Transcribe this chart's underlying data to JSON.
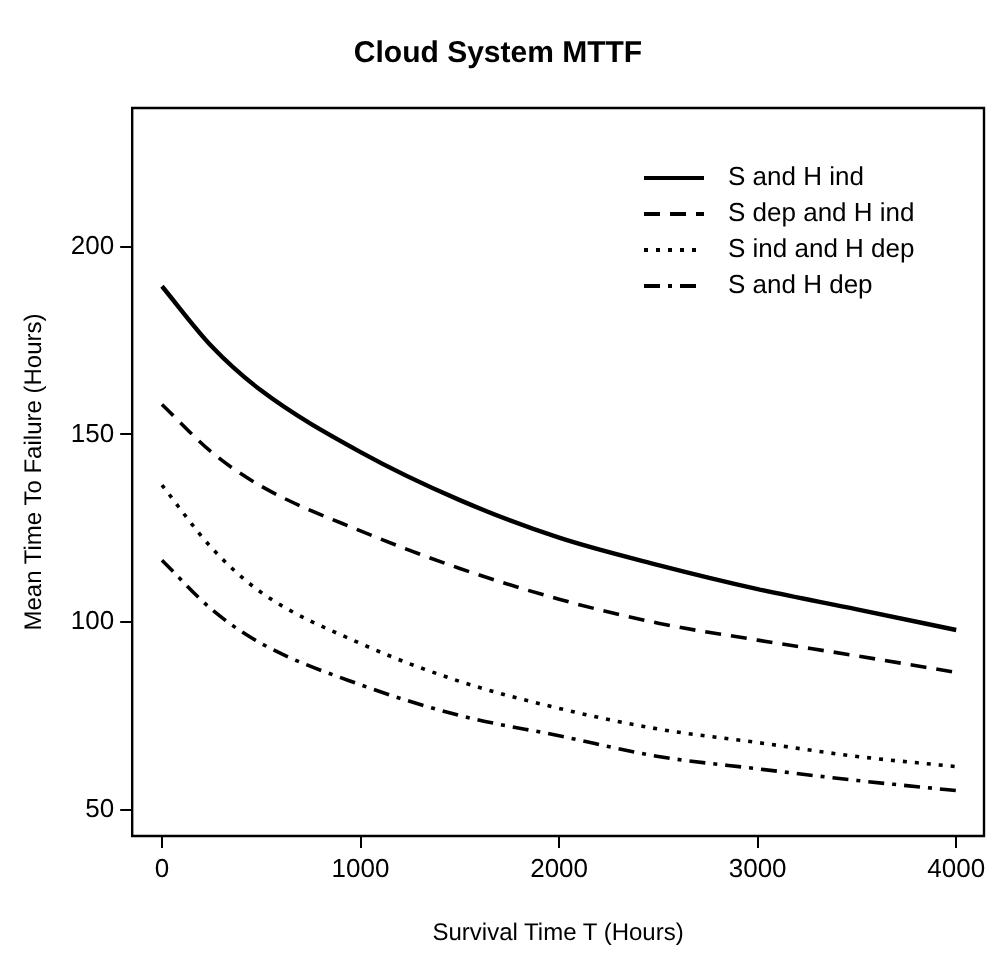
{
  "chart_data": {
    "type": "line",
    "title": "Cloud System MTTF",
    "xlabel": "Survival Time T (Hours)",
    "ylabel": "Mean Time To Failure (Hours)",
    "x": [
      0,
      250,
      500,
      1000,
      1500,
      2000,
      2500,
      3000,
      3500,
      4000
    ],
    "series": [
      {
        "name": "S and H ind",
        "color": "#000000",
        "line_style": "solid",
        "values": [
          189.5,
          173.5,
          161.7,
          145.3,
          132.5,
          122.5,
          115.2,
          108.8,
          103.4,
          97.9
        ]
      },
      {
        "name": "S dep and H ind",
        "color": "#000000",
        "line_style": "dashed",
        "values": [
          158,
          145.3,
          136.2,
          124.3,
          114.3,
          106.1,
          99.7,
          95.2,
          91,
          86.6
        ]
      },
      {
        "name": "S ind and H dep",
        "color": "#000000",
        "line_style": "dotted",
        "values": [
          136.5,
          119.8,
          107.9,
          94.3,
          84.2,
          77,
          71.5,
          67.9,
          64.2,
          61.5
        ]
      },
      {
        "name": "S and H dep",
        "color": "#000000",
        "line_style": "dashdot",
        "values": [
          116.5,
          103.4,
          94.3,
          83.3,
          75.1,
          69.7,
          64.2,
          60.9,
          57.8,
          55.1
        ]
      }
    ],
    "xlim": [
      -150,
      4140
    ],
    "ylim": [
      43,
      237
    ],
    "xticks": [
      0,
      1000,
      2000,
      3000,
      4000
    ],
    "yticks": [
      50,
      100,
      150,
      200
    ],
    "grid": false,
    "legend": "top right",
    "marker": "none"
  }
}
